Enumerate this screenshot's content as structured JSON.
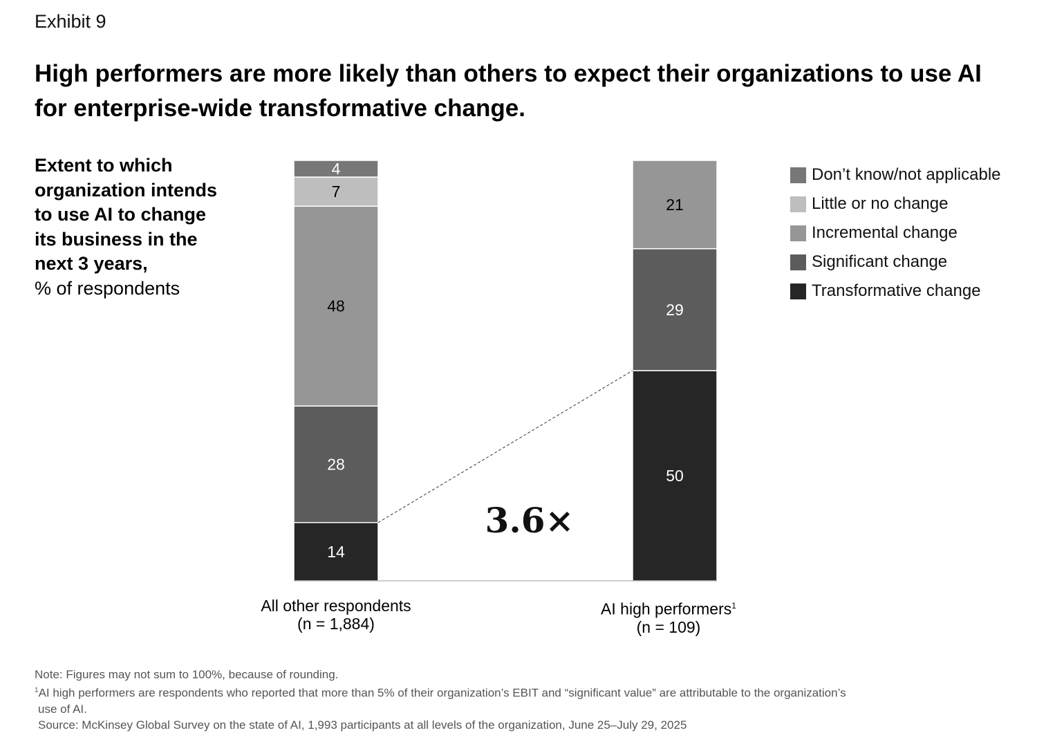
{
  "exhibit": "Exhibit 9",
  "title": "High performers are more likely than others to expect their organizations to use AI for enterprise-wide transformative change.",
  "subtitle_bold": [
    "Extent to which",
    "organization intends",
    "to use AI to change",
    "its business in the",
    "next 3 years,"
  ],
  "subtitle_unit": "% of respondents",
  "chart_data": {
    "type": "bar",
    "stacked": true,
    "categories": [
      "All other respondents",
      "AI high performers"
    ],
    "category_superscripts": [
      "",
      "1"
    ],
    "category_n": [
      "(n = 1,884)",
      "(n = 109)"
    ],
    "series": [
      {
        "name": "Transformative change",
        "color": "#262626",
        "label_color": "#ffffff",
        "values": [
          14,
          50
        ]
      },
      {
        "name": "Significant change",
        "color": "#5c5c5c",
        "label_color": "#ffffff",
        "values": [
          28,
          29
        ]
      },
      {
        "name": "Incremental change",
        "color": "#969696",
        "label_color": "#000000",
        "values": [
          48,
          21
        ]
      },
      {
        "name": "Little or no change",
        "color": "#bebebe",
        "label_color": "#000000",
        "values": [
          7,
          null
        ]
      },
      {
        "name": "Don’t know/not applicable",
        "color": "#777777",
        "label_color": "#ffffff",
        "values": [
          4,
          null
        ]
      }
    ],
    "legend_order": [
      "Don’t know/not applicable",
      "Little or no change",
      "Incremental change",
      "Significant change",
      "Transformative change"
    ],
    "legend_placement": "top-right",
    "annotation": "3.6×",
    "ylim": [
      0,
      100
    ]
  },
  "notes": {
    "note": "Note: Figures may not sum to 100%, because of rounding.",
    "footnote_mark": "1",
    "footnote": "AI high performers are respondents who reported that more than 5% of their organization’s EBIT and “significant value” are attributable to the organization’s",
    "footnote_cont": "use of AI.",
    "source": "Source: McKinsey Global Survey on the state of AI, 1,993 participants at all levels of the organization, June 25–July 29, 2025"
  }
}
